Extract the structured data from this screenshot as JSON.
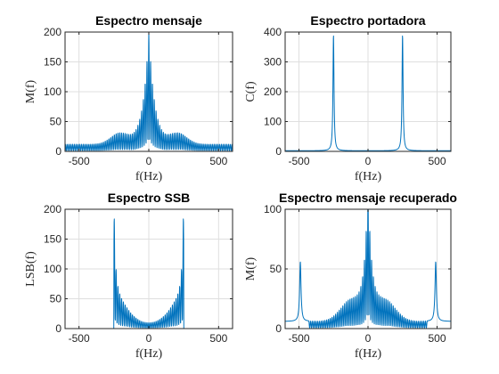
{
  "colors": {
    "series": "#0072bd",
    "axis": "#262626",
    "grid": "#dfdfdf",
    "background": "#ffffff"
  },
  "chart_data": [
    {
      "type": "line",
      "title": "Espectro mensaje",
      "xlabel": "f(Hz)",
      "ylabel": "M(f)",
      "xlim": [
        -600,
        600
      ],
      "ylim": [
        0,
        200
      ],
      "xticks": [
        -500,
        0,
        500
      ],
      "yticks": [
        0,
        50,
        100,
        150,
        200
      ],
      "series": [
        {
          "name": "M(f)",
          "shape": "message",
          "peak_values": [
            [
              -500,
              10
            ],
            [
              -300,
              13
            ],
            [
              -200,
              25
            ],
            [
              -100,
              50
            ],
            [
              -50,
              110
            ],
            [
              -12,
              200
            ],
            [
              12,
              200
            ],
            [
              50,
              110
            ],
            [
              100,
              50
            ],
            [
              200,
              25
            ],
            [
              300,
              13
            ],
            [
              500,
              10
            ]
          ]
        }
      ]
    },
    {
      "type": "line",
      "title": "Espectro portadora",
      "xlabel": "f(Hz)",
      "ylabel": "C(f)",
      "xlim": [
        -600,
        600
      ],
      "ylim": [
        0,
        400
      ],
      "xticks": [
        -500,
        0,
        500
      ],
      "yticks": [
        0,
        100,
        200,
        300,
        400
      ],
      "series": [
        {
          "name": "C(f)",
          "shape": "carrier",
          "peaks": [
            [
              -250,
              390
            ],
            [
              250,
              390
            ]
          ],
          "floor": 2
        }
      ]
    },
    {
      "type": "line",
      "title": "Espectro SSB",
      "xlabel": "f(Hz)",
      "ylabel": "LSB(f)",
      "xlim": [
        -600,
        600
      ],
      "ylim": [
        0,
        200
      ],
      "xticks": [
        -500,
        0,
        500
      ],
      "yticks": [
        0,
        50,
        100,
        150,
        200
      ],
      "series": [
        {
          "name": "LSB(f)",
          "shape": "ssb",
          "band": [
            -250,
            250
          ],
          "edge_value": 200,
          "center_value": 10
        }
      ]
    },
    {
      "type": "line",
      "title": "Espectro mensaje recuperado",
      "xlabel": "f(Hz)",
      "ylabel": "M(f)",
      "xlim": [
        -600,
        600
      ],
      "ylim": [
        0,
        100
      ],
      "xticks": [
        -500,
        0,
        500
      ],
      "yticks": [
        0,
        50,
        100
      ],
      "series": [
        {
          "name": "M(f) recuperado",
          "shape": "recovered",
          "peak_values": [
            [
              -490,
              52
            ],
            [
              -250,
              15
            ],
            [
              -100,
              32
            ],
            [
              -20,
              100
            ],
            [
              20,
              100
            ],
            [
              100,
              32
            ],
            [
              250,
              15
            ],
            [
              490,
              52
            ]
          ]
        }
      ]
    }
  ]
}
